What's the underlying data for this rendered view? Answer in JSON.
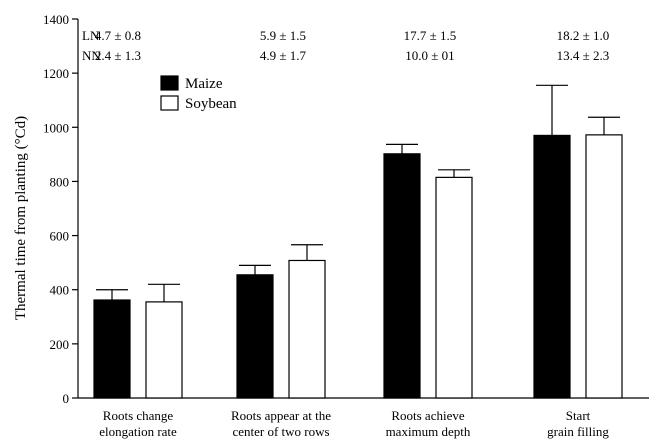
{
  "chart_data": {
    "type": "bar",
    "title": "",
    "xlabel": "",
    "ylabel": "Thermal time from planting (°Cd)",
    "ylim": [
      0,
      1400
    ],
    "yticks": [
      "0",
      "200",
      "400",
      "600",
      "800",
      "1000",
      "1200",
      "1400"
    ],
    "categories": [
      [
        "Roots change",
        "elongation rate"
      ],
      [
        "Roots appear at the",
        "center of two rows"
      ],
      [
        "Roots achieve",
        "maximum depth"
      ],
      [
        "Start",
        "grain filling"
      ]
    ],
    "series": [
      {
        "name": "Maize",
        "color": "#000000",
        "values": [
          362,
          455,
          902,
          970
        ],
        "errors": [
          38,
          35,
          35,
          185
        ]
      },
      {
        "name": "Soybean",
        "color": "#ffffff",
        "values": [
          355,
          508,
          815,
          972
        ],
        "errors": [
          65,
          58,
          28,
          65
        ]
      }
    ],
    "legend": {
      "placement": "top-left"
    },
    "grid": false,
    "annotations": {
      "rows": [
        {
          "label": "LN",
          "values": [
            "4.7 ± 0.8",
            "5.9 ± 1.5",
            "17.7 ± 1.5",
            "18.2 ± 1.0"
          ]
        },
        {
          "label": "NN",
          "values": [
            "2.4 ± 1.3",
            "4.9 ± 1.7",
            "10.0 ± 01",
            "13.4 ± 2.3"
          ]
        }
      ]
    }
  }
}
